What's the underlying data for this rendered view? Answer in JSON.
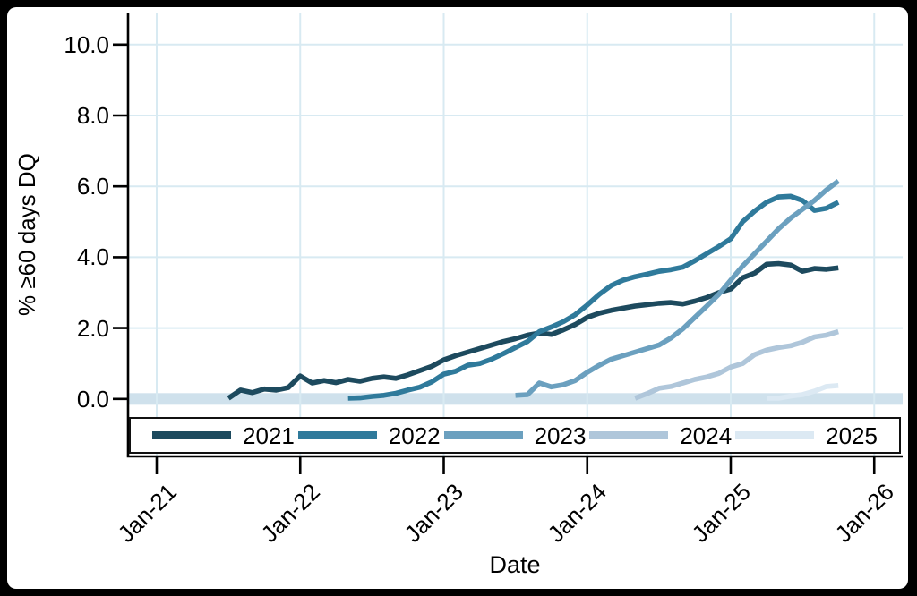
{
  "chart_data": {
    "type": "line",
    "title": "",
    "xlabel": "Date",
    "ylabel": "% ≥60 days DQ",
    "x_tick_labels": [
      "Jan-21",
      "Jan-22",
      "Jan-23",
      "Jan-24",
      "Jan-25",
      "Jan-26"
    ],
    "x_tick_months": [
      0,
      12,
      24,
      36,
      48,
      60
    ],
    "x_unit": "months-since-Jan-21",
    "y_ticks": [
      0,
      2,
      4,
      6,
      8,
      10
    ],
    "y_tick_labels": [
      "0.0",
      "2.0",
      "4.0",
      "6.0",
      "8.0",
      "10.0"
    ],
    "ylim": [
      -1.6,
      10.9
    ],
    "xlim_months": [
      -2.4,
      62.4
    ],
    "grid": true,
    "gridline_color": "#d8eaf2",
    "zero_band": true,
    "zero_band_color": "#cfe1ec",
    "axis_color": "#000000",
    "legend_position": "bottom",
    "series": [
      {
        "name": "2021",
        "color": "#1d4a5e",
        "start_month": 6,
        "values": [
          0.02,
          0.25,
          0.18,
          0.28,
          0.25,
          0.32,
          0.65,
          0.45,
          0.52,
          0.46,
          0.55,
          0.5,
          0.58,
          0.62,
          0.58,
          0.68,
          0.8,
          0.92,
          1.1,
          1.22,
          1.32,
          1.42,
          1.52,
          1.62,
          1.7,
          1.8,
          1.86,
          1.82,
          1.95,
          2.1,
          2.3,
          2.42,
          2.5,
          2.56,
          2.62,
          2.66,
          2.7,
          2.72,
          2.68,
          2.76,
          2.86,
          3.0,
          3.1,
          3.42,
          3.55,
          3.8,
          3.82,
          3.78,
          3.6,
          3.68,
          3.66,
          3.7
        ]
      },
      {
        "name": "2022",
        "color": "#2f7a9b",
        "start_month": 16,
        "values": [
          0.02,
          0.03,
          0.07,
          0.1,
          0.16,
          0.25,
          0.33,
          0.48,
          0.7,
          0.78,
          0.95,
          1.0,
          1.12,
          1.28,
          1.45,
          1.62,
          1.9,
          2.03,
          2.18,
          2.38,
          2.65,
          2.95,
          3.2,
          3.35,
          3.45,
          3.52,
          3.6,
          3.65,
          3.72,
          3.9,
          4.1,
          4.3,
          4.52,
          5.0,
          5.3,
          5.55,
          5.7,
          5.72,
          5.6,
          5.32,
          5.38,
          5.55
        ]
      },
      {
        "name": "2023",
        "color": "#6ba0bf",
        "start_month": 30,
        "values": [
          0.1,
          0.12,
          0.45,
          0.34,
          0.4,
          0.52,
          0.75,
          0.95,
          1.12,
          1.22,
          1.32,
          1.42,
          1.52,
          1.72,
          1.98,
          2.3,
          2.62,
          2.95,
          3.35,
          3.75,
          4.1,
          4.45,
          4.8,
          5.1,
          5.35,
          5.6,
          5.9,
          6.15
        ]
      },
      {
        "name": "2024",
        "color": "#afc6da",
        "start_month": 40,
        "values": [
          0.02,
          0.15,
          0.3,
          0.35,
          0.45,
          0.55,
          0.62,
          0.72,
          0.9,
          1.0,
          1.25,
          1.38,
          1.45,
          1.5,
          1.6,
          1.75,
          1.8,
          1.9
        ]
      },
      {
        "name": "2025",
        "color": "#dce9f3",
        "start_month": 51,
        "values": [
          0.02,
          0.02,
          0.08,
          0.12,
          0.22,
          0.35,
          0.38
        ]
      }
    ]
  }
}
